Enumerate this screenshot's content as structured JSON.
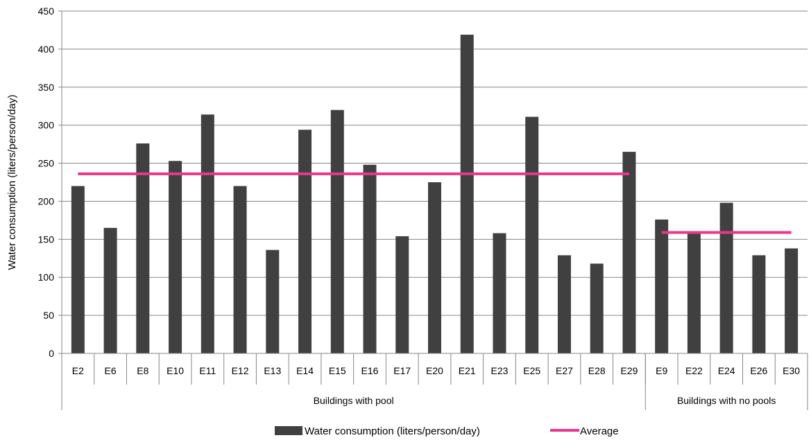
{
  "chart_data": {
    "type": "bar",
    "title": "",
    "xlabel": "",
    "ylabel": "Water consumption (liters/person/day)",
    "ylim": [
      0,
      450
    ],
    "yticks": [
      0,
      50,
      100,
      150,
      200,
      250,
      300,
      350,
      400,
      450
    ],
    "grid": true,
    "legend_position": "bottom",
    "categories": [
      "E2",
      "E6",
      "E8",
      "E10",
      "E11",
      "E12",
      "E13",
      "E14",
      "E15",
      "E16",
      "E17",
      "E20",
      "E21",
      "E23",
      "E25",
      "E27",
      "E28",
      "E29",
      "E9",
      "E22",
      "E24",
      "E26",
      "E30"
    ],
    "groups": [
      {
        "label": "Buildings with pool",
        "count": 18
      },
      {
        "label": "Buildings with no pools",
        "count": 5
      }
    ],
    "series": [
      {
        "name": "Water consumption (liters/person/day)",
        "type": "bar",
        "color": "#404040",
        "values": [
          220,
          165,
          276,
          253,
          314,
          220,
          136,
          294,
          320,
          248,
          154,
          225,
          419,
          158,
          311,
          129,
          118,
          265,
          176,
          158,
          198,
          129,
          138
        ]
      },
      {
        "name": "Average",
        "type": "line",
        "color": "#e8388a",
        "segments": [
          {
            "group": 0,
            "value": 236
          },
          {
            "group": 1,
            "value": 159
          }
        ]
      }
    ]
  }
}
